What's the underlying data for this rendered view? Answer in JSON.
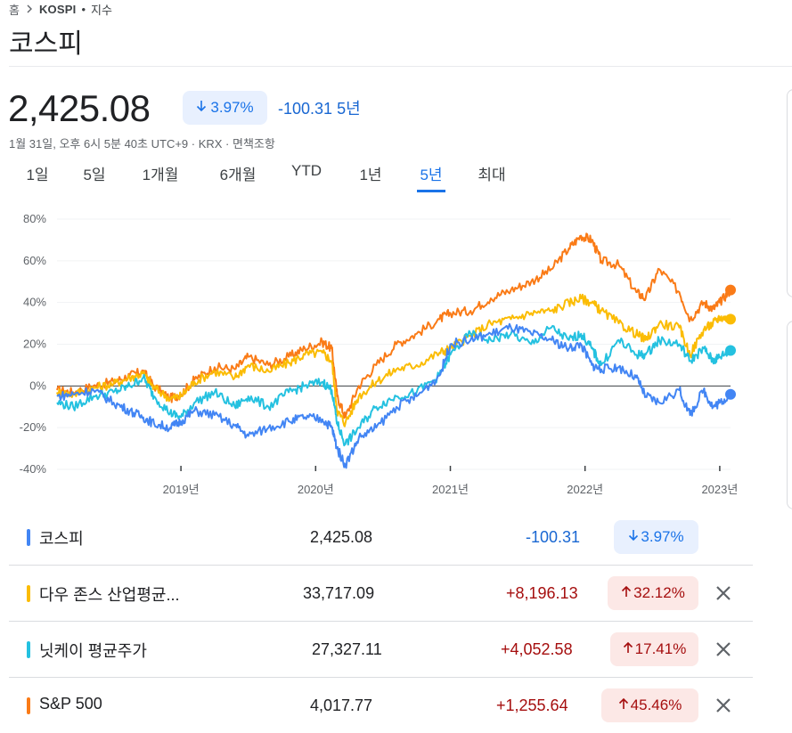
{
  "breadcrumb": {
    "home": "홈",
    "symbol": "KOSPI",
    "separator": "•",
    "type": "지수"
  },
  "title": "코스피",
  "quote": {
    "price": "2,425.08",
    "change_pct": "3.97%",
    "change_abs": "-100.31",
    "period": "5년",
    "timestamp": "1월 31일, 오후 6시 5분 40초 UTC+9 · KRX · 면책조항"
  },
  "tabs": [
    {
      "label": "1일"
    },
    {
      "label": "5일"
    },
    {
      "label": "1개월"
    },
    {
      "label": "6개월"
    },
    {
      "label": "YTD"
    },
    {
      "label": "1년"
    },
    {
      "label": "5년",
      "active": true
    },
    {
      "label": "최대"
    }
  ],
  "colors": {
    "kospi": "#4285f4",
    "dow": "#fbbc04",
    "nikkei": "#24c1e0",
    "sp500": "#fa7b17"
  },
  "chart_data": {
    "type": "line",
    "y_tick_labels": [
      "80%",
      "60%",
      "40%",
      "20%",
      "0%",
      "-20%",
      "-40%"
    ],
    "ylim": [
      -40,
      80
    ],
    "x_tick_labels": [
      "2019년",
      "2020년",
      "2021년",
      "2022년",
      "2023년"
    ],
    "x_ticks": [
      2019.0,
      2020.0,
      2021.0,
      2022.0,
      2023.0
    ],
    "xlim": [
      2018.08,
      2023.08
    ],
    "grid": true,
    "series": [
      {
        "name": "S&P 500",
        "color": "#fa7b17",
        "points": [
          [
            2018.08,
            -2
          ],
          [
            2018.2,
            -3
          ],
          [
            2018.35,
            0
          ],
          [
            2018.5,
            2
          ],
          [
            2018.62,
            5
          ],
          [
            2018.72,
            7
          ],
          [
            2018.8,
            0
          ],
          [
            2018.92,
            -6
          ],
          [
            2019.0,
            -4
          ],
          [
            2019.1,
            3
          ],
          [
            2019.25,
            9
          ],
          [
            2019.4,
            8
          ],
          [
            2019.5,
            14
          ],
          [
            2019.65,
            10
          ],
          [
            2019.8,
            14
          ],
          [
            2019.92,
            18
          ],
          [
            2020.05,
            21
          ],
          [
            2020.12,
            18
          ],
          [
            2020.16,
            -5
          ],
          [
            2020.22,
            -15
          ],
          [
            2020.32,
            0
          ],
          [
            2020.45,
            10
          ],
          [
            2020.6,
            20
          ],
          [
            2020.75,
            25
          ],
          [
            2020.92,
            32
          ],
          [
            2021.0,
            35
          ],
          [
            2021.15,
            36
          ],
          [
            2021.3,
            42
          ],
          [
            2021.45,
            46
          ],
          [
            2021.6,
            50
          ],
          [
            2021.75,
            56
          ],
          [
            2021.88,
            66
          ],
          [
            2021.97,
            72
          ],
          [
            2022.05,
            70
          ],
          [
            2022.12,
            60
          ],
          [
            2022.25,
            58
          ],
          [
            2022.38,
            45
          ],
          [
            2022.45,
            42
          ],
          [
            2022.55,
            56
          ],
          [
            2022.7,
            45
          ],
          [
            2022.78,
            32
          ],
          [
            2022.88,
            40
          ],
          [
            2022.95,
            37
          ],
          [
            2023.0,
            40
          ],
          [
            2023.08,
            46
          ]
        ]
      },
      {
        "name": "다우 존스 산업평균...",
        "color": "#fbbc04",
        "points": [
          [
            2018.08,
            -3
          ],
          [
            2018.2,
            -4
          ],
          [
            2018.35,
            -1
          ],
          [
            2018.5,
            1
          ],
          [
            2018.62,
            4
          ],
          [
            2018.72,
            6
          ],
          [
            2018.8,
            -1
          ],
          [
            2018.92,
            -6
          ],
          [
            2019.0,
            -5
          ],
          [
            2019.1,
            2
          ],
          [
            2019.25,
            7
          ],
          [
            2019.4,
            4
          ],
          [
            2019.5,
            10
          ],
          [
            2019.65,
            7
          ],
          [
            2019.8,
            11
          ],
          [
            2019.92,
            15
          ],
          [
            2020.05,
            16
          ],
          [
            2020.12,
            12
          ],
          [
            2020.16,
            -12
          ],
          [
            2020.22,
            -18
          ],
          [
            2020.32,
            -5
          ],
          [
            2020.45,
            2
          ],
          [
            2020.6,
            8
          ],
          [
            2020.75,
            10
          ],
          [
            2020.92,
            16
          ],
          [
            2021.0,
            18
          ],
          [
            2021.15,
            24
          ],
          [
            2021.3,
            30
          ],
          [
            2021.45,
            32
          ],
          [
            2021.6,
            35
          ],
          [
            2021.75,
            36
          ],
          [
            2021.88,
            40
          ],
          [
            2021.97,
            42
          ],
          [
            2022.05,
            40
          ],
          [
            2022.12,
            36
          ],
          [
            2022.25,
            30
          ],
          [
            2022.38,
            25
          ],
          [
            2022.45,
            22
          ],
          [
            2022.55,
            30
          ],
          [
            2022.7,
            28
          ],
          [
            2022.78,
            15
          ],
          [
            2022.88,
            27
          ],
          [
            2022.95,
            30
          ],
          [
            2023.0,
            33
          ],
          [
            2023.08,
            32
          ]
        ]
      },
      {
        "name": "닛케이 평균주가",
        "color": "#24c1e0",
        "points": [
          [
            2018.08,
            -8
          ],
          [
            2018.2,
            -10
          ],
          [
            2018.35,
            -5
          ],
          [
            2018.5,
            -3
          ],
          [
            2018.62,
            0
          ],
          [
            2018.72,
            4
          ],
          [
            2018.8,
            -5
          ],
          [
            2018.92,
            -13
          ],
          [
            2019.0,
            -15
          ],
          [
            2019.1,
            -8
          ],
          [
            2019.25,
            -3
          ],
          [
            2019.4,
            -10
          ],
          [
            2019.5,
            -5
          ],
          [
            2019.65,
            -10
          ],
          [
            2019.8,
            -3
          ],
          [
            2019.92,
            0
          ],
          [
            2020.05,
            2
          ],
          [
            2020.12,
            -2
          ],
          [
            2020.16,
            -18
          ],
          [
            2020.22,
            -28
          ],
          [
            2020.32,
            -20
          ],
          [
            2020.45,
            -10
          ],
          [
            2020.6,
            -5
          ],
          [
            2020.75,
            -3
          ],
          [
            2020.92,
            5
          ],
          [
            2021.0,
            15
          ],
          [
            2021.15,
            25
          ],
          [
            2021.3,
            22
          ],
          [
            2021.45,
            25
          ],
          [
            2021.6,
            20
          ],
          [
            2021.75,
            28
          ],
          [
            2021.88,
            22
          ],
          [
            2021.97,
            25
          ],
          [
            2022.05,
            18
          ],
          [
            2022.12,
            10
          ],
          [
            2022.25,
            22
          ],
          [
            2022.38,
            15
          ],
          [
            2022.45,
            15
          ],
          [
            2022.55,
            22
          ],
          [
            2022.7,
            20
          ],
          [
            2022.78,
            12
          ],
          [
            2022.88,
            18
          ],
          [
            2022.95,
            12
          ],
          [
            2023.0,
            14
          ],
          [
            2023.08,
            17
          ]
        ]
      },
      {
        "name": "코스피",
        "color": "#4285f4",
        "points": [
          [
            2018.08,
            -5
          ],
          [
            2018.2,
            -4
          ],
          [
            2018.35,
            -2
          ],
          [
            2018.5,
            -8
          ],
          [
            2018.62,
            -12
          ],
          [
            2018.72,
            -15
          ],
          [
            2018.8,
            -18
          ],
          [
            2018.92,
            -20
          ],
          [
            2019.0,
            -17
          ],
          [
            2019.1,
            -12
          ],
          [
            2019.25,
            -14
          ],
          [
            2019.4,
            -19
          ],
          [
            2019.5,
            -24
          ],
          [
            2019.65,
            -20
          ],
          [
            2019.8,
            -17
          ],
          [
            2019.92,
            -15
          ],
          [
            2020.05,
            -16
          ],
          [
            2020.12,
            -20
          ],
          [
            2020.16,
            -30
          ],
          [
            2020.22,
            -38
          ],
          [
            2020.32,
            -25
          ],
          [
            2020.45,
            -20
          ],
          [
            2020.6,
            -10
          ],
          [
            2020.75,
            -5
          ],
          [
            2020.92,
            5
          ],
          [
            2021.0,
            20
          ],
          [
            2021.15,
            22
          ],
          [
            2021.3,
            25
          ],
          [
            2021.45,
            28
          ],
          [
            2021.6,
            25
          ],
          [
            2021.75,
            22
          ],
          [
            2021.88,
            18
          ],
          [
            2021.97,
            20
          ],
          [
            2022.05,
            10
          ],
          [
            2022.12,
            8
          ],
          [
            2022.25,
            9
          ],
          [
            2022.38,
            4
          ],
          [
            2022.45,
            -5
          ],
          [
            2022.55,
            -8
          ],
          [
            2022.7,
            -2
          ],
          [
            2022.78,
            -14
          ],
          [
            2022.88,
            -2
          ],
          [
            2022.95,
            -10
          ],
          [
            2023.0,
            -8
          ],
          [
            2023.08,
            -4
          ]
        ]
      }
    ]
  },
  "legend": [
    {
      "key": "kospi",
      "name": "코스피",
      "value": "2,425.08",
      "abs": "-100.31",
      "pct": "3.97%",
      "dir": "down",
      "removable": false
    },
    {
      "key": "dow",
      "name": "다우 존스 산업평균...",
      "value": "33,717.09",
      "abs": "+8,196.13",
      "pct": "32.12%",
      "dir": "up",
      "removable": true
    },
    {
      "key": "nikkei",
      "name": "닛케이 평균주가",
      "value": "27,327.11",
      "abs": "+4,052.58",
      "pct": "17.41%",
      "dir": "up",
      "removable": true
    },
    {
      "key": "sp500",
      "name": "S&P 500",
      "value": "4,017.77",
      "abs": "+1,255.64",
      "pct": "45.46%",
      "dir": "up",
      "removable": true
    }
  ],
  "icons": {
    "chevron": "chevron-right-icon",
    "down_arrow": "arrow-down-icon",
    "up_arrow": "arrow-up-icon",
    "close": "close-icon"
  }
}
